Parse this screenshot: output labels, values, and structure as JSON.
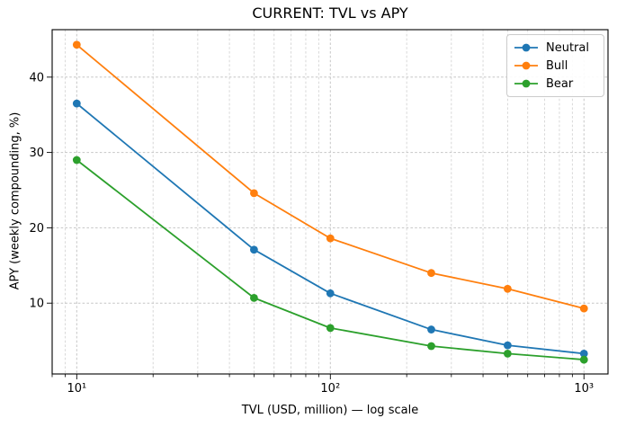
{
  "chart_data": {
    "type": "line",
    "title": "CURRENT: TVL vs APY",
    "xlabel": "TVL (USD, million) — log scale",
    "ylabel": "APY (weekly compounding, %)",
    "x_scale": "log",
    "x": [
      10,
      50,
      100,
      250,
      500,
      1000
    ],
    "series": [
      {
        "name": "Neutral",
        "color": "#1f77b4",
        "values": [
          36.5,
          17.1,
          11.3,
          6.5,
          4.4,
          3.3
        ]
      },
      {
        "name": "Bull",
        "color": "#ff7f0e",
        "values": [
          44.3,
          24.6,
          18.6,
          14.0,
          11.9,
          9.3
        ]
      },
      {
        "name": "Bear",
        "color": "#2ca02c",
        "values": [
          29.0,
          10.7,
          6.7,
          4.3,
          3.3,
          2.5
        ]
      }
    ],
    "xlim": [
      8,
      1244
    ],
    "ylim": [
      0.6,
      46.3
    ],
    "y_ticks": [
      10,
      20,
      30,
      40
    ],
    "y_tick_labels": [
      "10",
      "20",
      "30",
      "40"
    ],
    "x_major_ticks": [
      10,
      100,
      1000
    ],
    "x_major_tick_labels": [
      "10¹",
      "10²",
      "10³"
    ],
    "x_minor_ticks": [
      8,
      9,
      20,
      30,
      40,
      50,
      60,
      70,
      80,
      90,
      200,
      300,
      400,
      500,
      600,
      700,
      800,
      900
    ],
    "grid": {
      "visible": true,
      "which": "both",
      "line_style": "dashed",
      "color": "#c6c6c6"
    },
    "legend": {
      "position": "upper right",
      "entries": [
        "Neutral",
        "Bull",
        "Bear"
      ]
    },
    "marker": "circle"
  }
}
